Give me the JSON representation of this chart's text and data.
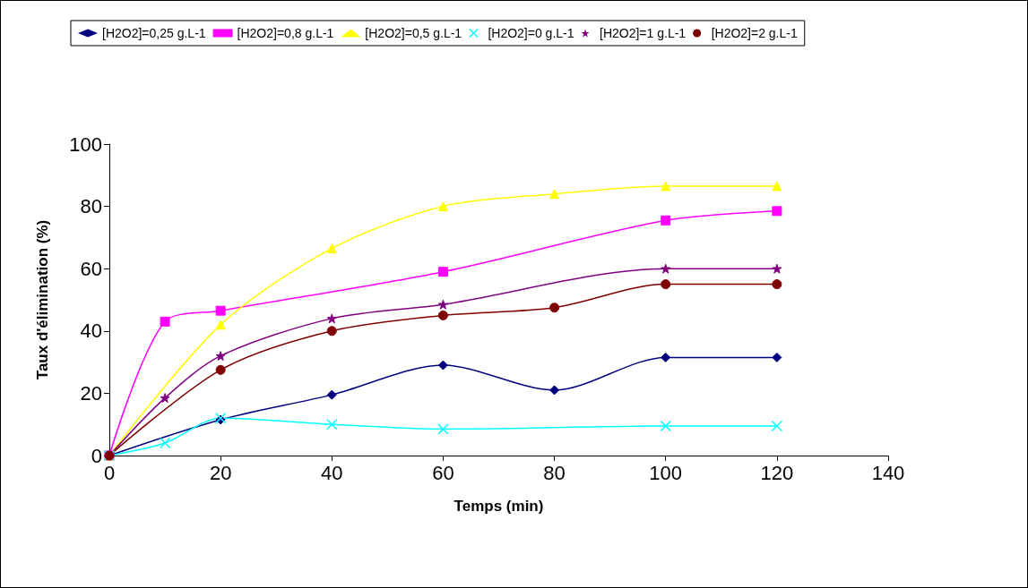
{
  "chart_data": {
    "type": "line",
    "xlabel": "Temps (min)",
    "ylabel": "Taux d'élimination (%)",
    "xlim": [
      0,
      140
    ],
    "xticks": [
      0,
      20,
      40,
      60,
      80,
      100,
      120,
      140
    ],
    "ylim": [
      0,
      100
    ],
    "yticks": [
      0,
      20,
      40,
      60,
      80,
      100
    ],
    "grid": false,
    "legend": "top",
    "line_style": "solid",
    "series": [
      {
        "name": "[H2O2]=0,25 g.L-1",
        "color": "#000080",
        "marker": "diamond",
        "x": [
          0,
          20,
          40,
          60,
          80,
          100,
          120
        ],
        "values": [
          0,
          11.5,
          19.5,
          29,
          21,
          31.5,
          31.5
        ]
      },
      {
        "name": "[H2O2]=0,8 g.L-1",
        "color": "#ff00ff",
        "marker": "square",
        "x": [
          0,
          10,
          20,
          60,
          100,
          120
        ],
        "values": [
          0,
          43,
          46.5,
          59,
          75.5,
          78.5
        ]
      },
      {
        "name": "[H2O2]=0,5 g.L-1",
        "color": "#ffff00",
        "marker": "triangle",
        "x": [
          0,
          20,
          40,
          60,
          80,
          100,
          120
        ],
        "values": [
          0,
          42,
          66.5,
          80,
          84,
          86.5,
          86.5
        ]
      },
      {
        "name": "[H2O2]=0 g.L-1",
        "color": "#00ffff",
        "marker": "cross",
        "x": [
          0,
          10,
          20,
          40,
          60,
          100,
          120
        ],
        "values": [
          0,
          4,
          12,
          10,
          8.5,
          9.5,
          9.5
        ]
      },
      {
        "name": "[H2O2]=1 g.L-1",
        "color": "#800080",
        "marker": "star",
        "x": [
          0,
          10,
          20,
          40,
          60,
          100,
          120
        ],
        "values": [
          0,
          18.5,
          32,
          44,
          48.5,
          60,
          60
        ]
      },
      {
        "name": "[H2O2]=2 g.L-1",
        "color": "#800000",
        "marker": "circle",
        "x": [
          0,
          20,
          40,
          60,
          80,
          100,
          120
        ],
        "values": [
          0,
          27.5,
          40,
          45,
          47.5,
          55,
          55
        ]
      }
    ]
  }
}
